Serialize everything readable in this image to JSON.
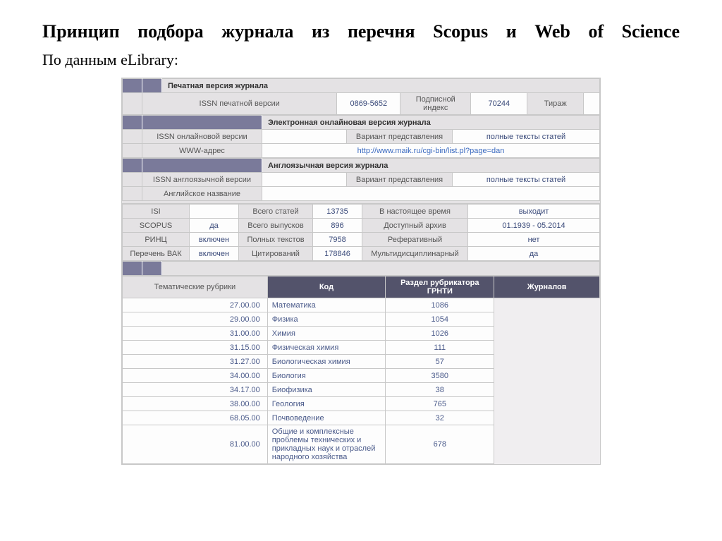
{
  "title": "Принцип подбора журнала из перечня Scopus и Web of Science",
  "subtitle": "По данным eLibrary:",
  "sections": {
    "print": {
      "header": "Печатная версия журнала",
      "issn_label": "ISSN печатной версии",
      "issn_value": "0869-5652",
      "subidx_label": "Подписной индекс",
      "subidx_value": "70244",
      "tirazh_label": "Тираж"
    },
    "online": {
      "header": "Электронная онлайновая версия журнала",
      "issn_label": "ISSN онлайновой версии",
      "variant_label": "Вариант представления",
      "variant_value": "полные тексты статей",
      "www_label": "WWW-адрес",
      "www_value": "http://www.maik.ru/cgi-bin/list.pl?page=dan"
    },
    "english": {
      "header": "Англоязычная версия журнала",
      "issn_label": "ISSN англоязычной версии",
      "variant_label": "Вариант представления",
      "variant_value": "полные тексты статей",
      "name_label": "Английское название"
    }
  },
  "stats": {
    "labels": {
      "isi": "ISI",
      "scopus": "SCOPUS",
      "rinc": "РИНЦ",
      "vak": "Перечень ВАК",
      "articles": "Всего статей",
      "issues": "Всего выпусков",
      "fulltext": "Полных текстов",
      "citations": "Цитирований",
      "current": "В настоящее время",
      "archive": "Доступный архив",
      "abstract": "Реферативный",
      "multi": "Мультидисциплинарный"
    },
    "values": {
      "isi": "",
      "scopus": "да",
      "rinc": "включен",
      "vak": "включен",
      "articles": "13735",
      "issues": "896",
      "fulltext": "7958",
      "citations": "178846",
      "current": "выходит",
      "archive": "01.1939 - 05.2014",
      "abstract": "нет",
      "multi": "да"
    }
  },
  "grnti": {
    "side_label": "Тематические рубрики",
    "headers": {
      "code": "Код",
      "section": "Раздел рубрикатора ГРНТИ",
      "count": "Журналов"
    },
    "rows": [
      {
        "code": "27.00.00",
        "name": "Математика",
        "count": "1086"
      },
      {
        "code": "29.00.00",
        "name": "Физика",
        "count": "1054"
      },
      {
        "code": "31.00.00",
        "name": "Химия",
        "count": "1026"
      },
      {
        "code": "31.15.00",
        "name": "Физическая химия",
        "count": "111"
      },
      {
        "code": "31.27.00",
        "name": "Биологическая химия",
        "count": "57"
      },
      {
        "code": "34.00.00",
        "name": "Биология",
        "count": "3580"
      },
      {
        "code": "34.17.00",
        "name": "Биофизика",
        "count": "38"
      },
      {
        "code": "38.00.00",
        "name": "Геология",
        "count": "765"
      },
      {
        "code": "68.05.00",
        "name": "Почвоведение",
        "count": "32"
      },
      {
        "code": "81.00.00",
        "name": "Общие и комплексные проблемы технических и прикладных наук и отраслей народного хозяйства",
        "count": "678"
      }
    ]
  }
}
